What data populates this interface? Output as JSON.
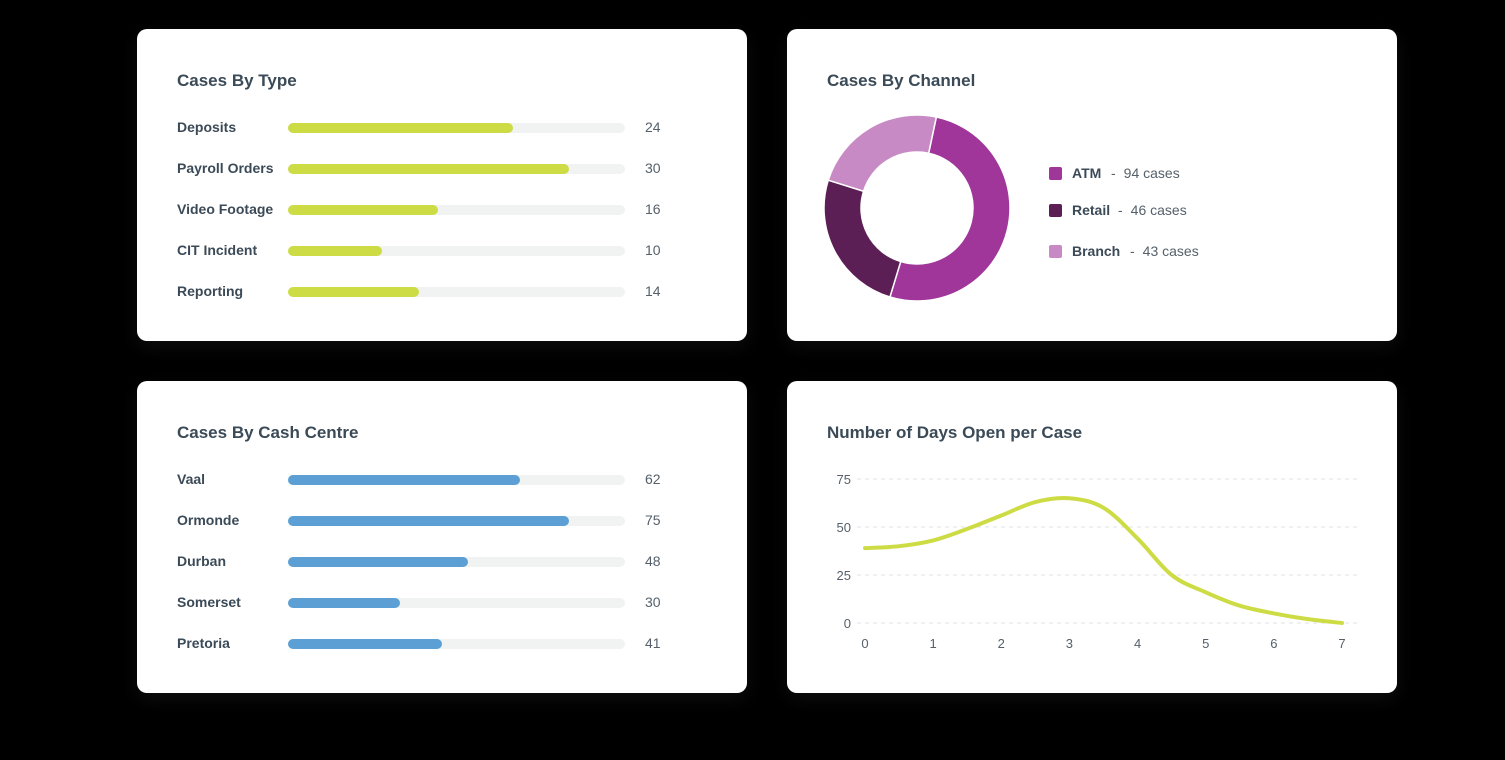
{
  "colors": {
    "type_bar": "#cddc45",
    "centre_bar": "#5b9fd4",
    "track": "#f1f3f2",
    "atm": "#a0359a",
    "retail": "#5c1f55",
    "branch": "#c78ac4",
    "line": "#cddc45"
  },
  "cases_by_type": {
    "title": "Cases By Type",
    "max": 36,
    "items": [
      {
        "label": "Deposits",
        "value": 24
      },
      {
        "label": "Payroll Orders",
        "value": 30
      },
      {
        "label": "Video Footage",
        "value": 16
      },
      {
        "label": "CIT Incident",
        "value": 10
      },
      {
        "label": "Reporting",
        "value": 14
      }
    ]
  },
  "cases_by_channel": {
    "title": "Cases By Channel",
    "separator": "-",
    "items": [
      {
        "name": "ATM",
        "value": 94,
        "count_text": "94 cases"
      },
      {
        "name": "Retail",
        "value": 46,
        "count_text": "46 cases"
      },
      {
        "name": "Branch",
        "value": 43,
        "count_text": "43 cases"
      }
    ]
  },
  "cases_by_cash_centre": {
    "title": "Cases By Cash Centre",
    "max": 90,
    "items": [
      {
        "label": "Vaal",
        "value": 62
      },
      {
        "label": "Ormonde",
        "value": 75
      },
      {
        "label": "Durban",
        "value": 48
      },
      {
        "label": "Somerset",
        "value": 30
      },
      {
        "label": "Pretoria",
        "value": 41
      }
    ]
  },
  "chart_data": [
    {
      "type": "bar",
      "title": "Cases By Type",
      "categories": [
        "Deposits",
        "Payroll Orders",
        "Video Footage",
        "CIT Incident",
        "Reporting"
      ],
      "values": [
        24,
        30,
        16,
        10,
        14
      ]
    },
    {
      "type": "pie",
      "title": "Cases By Channel",
      "categories": [
        "ATM",
        "Retail",
        "Branch"
      ],
      "values": [
        94,
        46,
        43
      ]
    },
    {
      "type": "bar",
      "title": "Cases By Cash Centre",
      "categories": [
        "Vaal",
        "Ormonde",
        "Durban",
        "Somerset",
        "Pretoria"
      ],
      "values": [
        62,
        75,
        48,
        30,
        41
      ]
    },
    {
      "type": "line",
      "title": "Number of Days Open per Case",
      "xlabel": "",
      "ylabel": "",
      "x": [
        0,
        0.5,
        1,
        1.5,
        2,
        2.5,
        3,
        3.5,
        4,
        4.5,
        5,
        5.5,
        6,
        6.5,
        7
      ],
      "y": [
        39,
        40,
        43,
        49,
        56,
        63,
        65,
        60,
        44,
        25,
        16,
        9,
        5,
        2,
        0
      ],
      "xticks": [
        "0",
        "1",
        "2",
        "3",
        "4",
        "5",
        "6",
        "7"
      ],
      "yticks": [
        "0",
        "25",
        "50",
        "75"
      ],
      "xlim": [
        0,
        7
      ],
      "ylim": [
        0,
        75
      ],
      "grid": true
    }
  ]
}
